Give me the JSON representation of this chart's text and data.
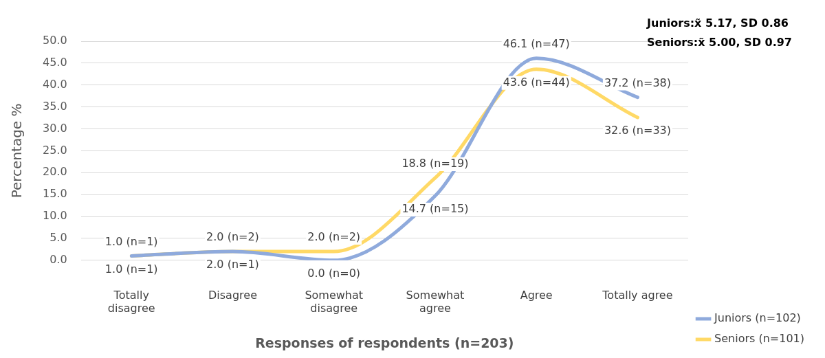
{
  "chart_data": {
    "type": "line",
    "xlabel": "Responses of respondents (n=203)",
    "ylabel": "Percentage %",
    "categories": [
      "Totally disagree",
      "Disagree",
      "Somewhat disagree",
      "Somewhat agree",
      "Agree",
      "Totally agree"
    ],
    "series": [
      {
        "name": "Juniors (n=102)",
        "color": "#8faadc",
        "values": [
          1.0,
          2.0,
          0.0,
          14.7,
          46.1,
          37.2
        ],
        "value_labels": [
          "1.0 (n=1)",
          "2.0 (n=1)",
          "0.0 (n=0)",
          "14.7 (n=15)",
          "46.1 (n=47)",
          "37.2 (n=38)"
        ]
      },
      {
        "name": "Seniors (n=101)",
        "color": "#ffd966",
        "values": [
          1.0,
          2.0,
          2.0,
          18.8,
          43.6,
          32.6
        ],
        "value_labels": [
          "1.0 (n=1)",
          "2.0 (n=2)",
          "2.0 (n=2)",
          "18.8 (n=19)",
          "43.6 (n=44)",
          "32.6 (n=33)"
        ]
      }
    ],
    "ylim": [
      0,
      50
    ],
    "yticks": [
      {
        "value": 0,
        "label": "0.0"
      },
      {
        "value": 5,
        "label": "5.0"
      },
      {
        "value": 10,
        "label": "10.0"
      },
      {
        "value": 15,
        "label": "15.0"
      },
      {
        "value": 20,
        "label": "20.0"
      },
      {
        "value": 25,
        "label": "25.0"
      },
      {
        "value": 30,
        "label": "30.0"
      },
      {
        "value": 35,
        "label": "35.0"
      },
      {
        "value": 40,
        "label": "40.0"
      },
      {
        "value": 45,
        "label": "45.0"
      },
      {
        "value": 50,
        "label": "50.0"
      }
    ],
    "grid": "y",
    "legend": "bottom right",
    "marker": "none",
    "line_style": "solid",
    "annotations": [
      "Juniors:x̃ 5.17, SD 0.86",
      "Seniors:x̃ 5.00, SD 0.97"
    ]
  }
}
